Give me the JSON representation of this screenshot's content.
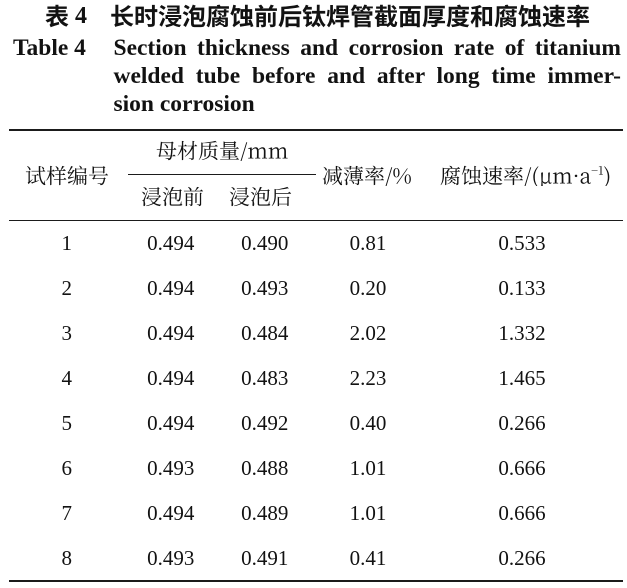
{
  "page": {
    "background": "#ffffff",
    "text_color": "#121212"
  },
  "title": {
    "label_cn": "表 4",
    "table_number": "4",
    "text_cn": "长时浸泡腐蚀前后钛焊管截面厚度和腐蚀速率",
    "label_en": "Table 4",
    "en_lines": [
      "Section thickness and corrosion rate of titanium",
      "welded tube before and after long time immer-",
      "sion corrosion"
    ]
  },
  "table": {
    "col_sample": "试样编号",
    "group_header": "母材质量/mm",
    "col_before": "浸泡前",
    "col_after": "浸泡后",
    "col_thinning": "减薄率/%",
    "col_rate": "腐蚀速率/(μm·a⁻¹)",
    "rows": [
      [
        "1",
        "0.494",
        "0.490",
        "0.81",
        "0.533"
      ],
      [
        "2",
        "0.494",
        "0.493",
        "0.20",
        "0.133"
      ],
      [
        "3",
        "0.494",
        "0.484",
        "2.02",
        "1.332"
      ],
      [
        "4",
        "0.494",
        "0.483",
        "2.23",
        "1.465"
      ],
      [
        "5",
        "0.494",
        "0.492",
        "0.40",
        "0.266"
      ],
      [
        "6",
        "0.493",
        "0.488",
        "1.01",
        "0.666"
      ],
      [
        "7",
        "0.494",
        "0.489",
        "1.01",
        "0.666"
      ],
      [
        "8",
        "0.493",
        "0.491",
        "0.41",
        "0.266"
      ]
    ]
  },
  "chart_data": {
    "type": "table",
    "title_cn": "表4 长时浸泡腐蚀前后钛焊管截面厚度和腐蚀速率",
    "title_en": "Table 4 Section thickness and corrosion rate of titanium welded tube before and after long time immersion corrosion",
    "columns": [
      "试样编号",
      "母材质量/mm 浸泡前",
      "母材质量/mm 浸泡后",
      "减薄率/%",
      "腐蚀速率/(μm·a⁻¹)"
    ],
    "rows": [
      [
        "1",
        "0.494",
        "0.490",
        "0.81",
        "0.533"
      ],
      [
        "2",
        "0.494",
        "0.493",
        "0.20",
        "0.133"
      ],
      [
        "3",
        "0.494",
        "0.484",
        "2.02",
        "1.332"
      ],
      [
        "4",
        "0.494",
        "0.483",
        "2.23",
        "1.465"
      ],
      [
        "5",
        "0.494",
        "0.492",
        "0.40",
        "0.266"
      ],
      [
        "6",
        "0.493",
        "0.488",
        "1.01",
        "0.666"
      ],
      [
        "7",
        "0.494",
        "0.489",
        "1.01",
        "0.666"
      ],
      [
        "8",
        "0.493",
        "0.491",
        "0.41",
        "0.266"
      ]
    ]
  }
}
